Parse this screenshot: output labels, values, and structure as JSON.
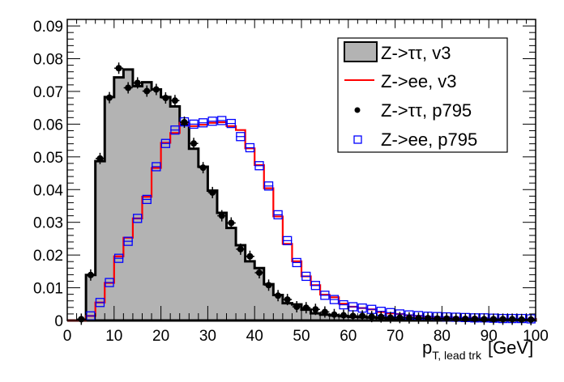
{
  "chart_data": {
    "type": "bar",
    "title": "",
    "xlabel": {
      "base": "p",
      "subscript": "T, lead trk",
      "unit": "[GeV]"
    },
    "ylabel": "",
    "xlim": [
      0,
      100
    ],
    "ylim": [
      0,
      0.092
    ],
    "grid": false,
    "legend_position": "top-right",
    "bins": {
      "xmin": 0,
      "xmax": 100,
      "n": 50
    },
    "x_ticks": [
      "0",
      "10",
      "20",
      "30",
      "40",
      "50",
      "60",
      "70",
      "80",
      "90",
      "100"
    ],
    "y_ticks": [
      "0",
      "0.01",
      "0.02",
      "0.03",
      "0.04",
      "0.05",
      "0.06",
      "0.07",
      "0.08",
      "0.09"
    ],
    "series": [
      {
        "name": "Z->ττ, v3",
        "style": "filled-histogram",
        "fill": "#b3b3b3",
        "line": "#000000",
        "values": [
          0,
          0,
          0.0139,
          0.0487,
          0.0683,
          0.0743,
          0.0767,
          0.0716,
          0.0728,
          0.0706,
          0.0683,
          0.0654,
          0.06,
          0.0525,
          0.047,
          0.0397,
          0.0329,
          0.0283,
          0.023,
          0.0181,
          0.016,
          0.0111,
          0.0078,
          0.0053,
          0.0049,
          0.0033,
          0.0022,
          0.0018,
          0.0015,
          0.0013,
          0.0011,
          0.001,
          0.0009,
          0.0008,
          0.0007,
          0.0007,
          0.0006,
          0.0006,
          0.0005,
          0.0005,
          0.0005,
          0.0004,
          0.0004,
          0.0004,
          0.0004,
          0.0003,
          0.0003,
          0.0003,
          0.0003,
          0.0003
        ]
      },
      {
        "name": "Z->ee, v3",
        "style": "line-histogram",
        "line": "#ff0000",
        "values": [
          0,
          0,
          0.0014,
          0.0055,
          0.0115,
          0.0196,
          0.0253,
          0.0312,
          0.0378,
          0.0466,
          0.0543,
          0.0573,
          0.0604,
          0.0594,
          0.0598,
          0.0604,
          0.0606,
          0.0594,
          0.0582,
          0.0526,
          0.0475,
          0.0404,
          0.0318,
          0.0234,
          0.0181,
          0.0135,
          0.0108,
          0.0079,
          0.0071,
          0.0051,
          0.0042,
          0.0038,
          0.0034,
          0.0026,
          0.0022,
          0.002,
          0.0016,
          0.0014,
          0.0012,
          0.0011,
          0.001,
          0.0009,
          0.0008,
          0.0008,
          0.0007,
          0.0006,
          0.0006,
          0.0005,
          0.0005,
          0.0005
        ]
      },
      {
        "name": "Z->ττ, p795",
        "style": "markers-dot",
        "color": "#000000",
        "values": [
          null,
          0.0004,
          0.0139,
          0.0495,
          0.0681,
          0.0771,
          0.0711,
          0.0726,
          0.0701,
          0.0706,
          0.068,
          0.0672,
          0.0606,
          0.0541,
          0.0467,
          0.0391,
          0.032,
          0.0298,
          0.0218,
          0.0196,
          0.0146,
          0.0108,
          0.0076,
          0.0064,
          0.0042,
          0.0039,
          0.0034,
          0.0026,
          0.0018,
          0.0016,
          0.0014,
          0.0014,
          0.0012,
          0.0011,
          0.0009,
          0.0009,
          0.0008,
          0.0007,
          0.0007,
          0.0006,
          0.0006,
          0.0005,
          0.0005,
          0.0005,
          0.0004,
          0.0004,
          0.0004,
          0.0004,
          0.0003,
          0.0003
        ]
      },
      {
        "name": "Z->ee, p795",
        "style": "markers-open-square",
        "color": "#0000ff",
        "values": [
          null,
          null,
          0.0014,
          0.0055,
          0.0116,
          0.019,
          0.0242,
          0.0312,
          0.037,
          0.047,
          0.0541,
          0.0582,
          0.0607,
          0.06,
          0.0604,
          0.0609,
          0.0611,
          0.0602,
          0.0562,
          0.0528,
          0.0473,
          0.0411,
          0.0323,
          0.0244,
          0.0177,
          0.0135,
          0.0107,
          0.0077,
          0.0064,
          0.0048,
          0.0042,
          0.0038,
          0.0034,
          0.0028,
          0.0024,
          0.002,
          0.0017,
          0.0015,
          0.0013,
          0.0012,
          0.0011,
          0.001,
          0.0009,
          0.0008,
          0.0008,
          0.0007,
          0.0006,
          0.0006,
          0.0006,
          0.0005
        ]
      }
    ]
  }
}
